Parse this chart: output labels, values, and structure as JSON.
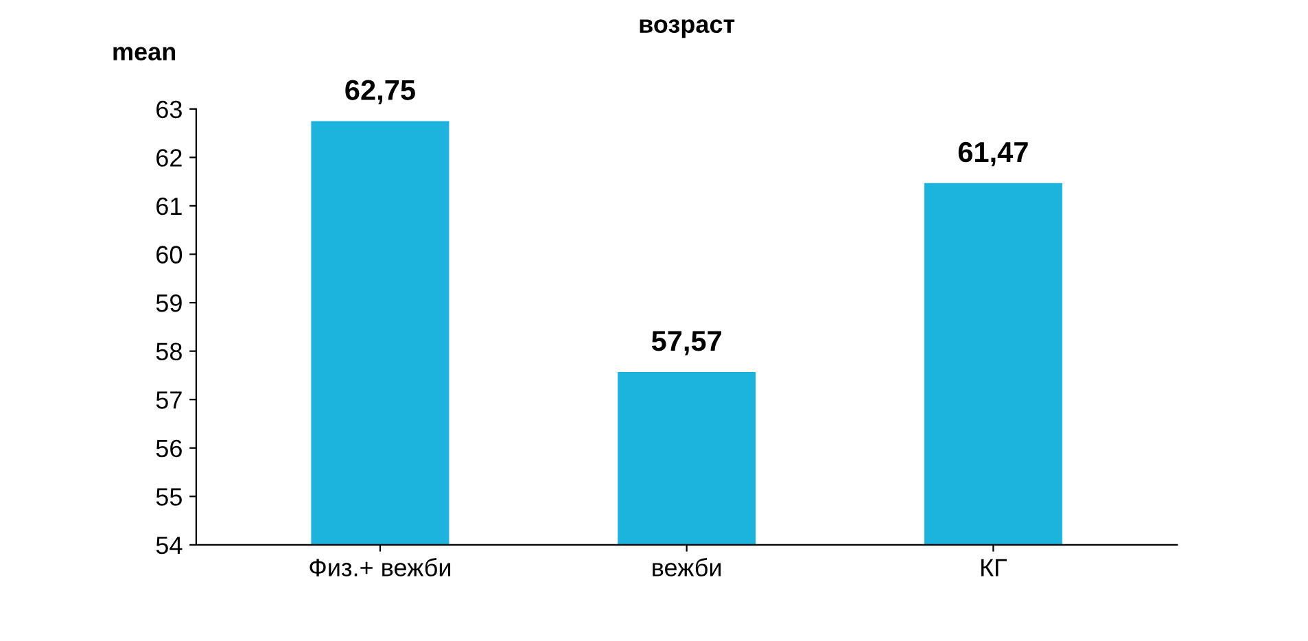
{
  "chart_data": {
    "type": "bar",
    "title": "возраст",
    "ylabel": "mean",
    "categories": [
      "Физ.+ вежби",
      "вежби",
      "КГ"
    ],
    "values": [
      62.75,
      57.57,
      61.47
    ],
    "color": "#1cb4dc",
    "value_labels": [
      "62,75",
      "57,57",
      "61,47"
    ],
    "ylim": [
      54,
      63
    ],
    "yticks": [
      54,
      55,
      56,
      57,
      58,
      59,
      60,
      61,
      62,
      63
    ],
    "grid": false,
    "legend": false
  }
}
